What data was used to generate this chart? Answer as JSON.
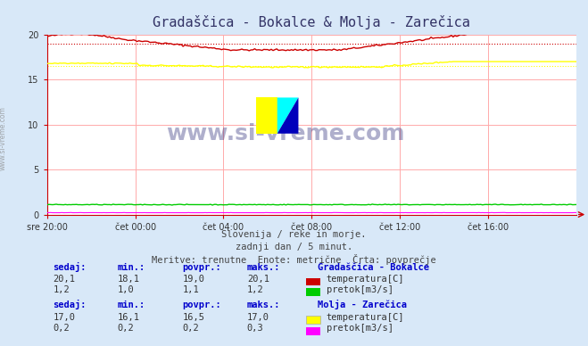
{
  "title": "Gradaščica - Bokalce & Molja - Zarečica",
  "background_color": "#d8e8f8",
  "plot_bg_color": "#ffffff",
  "x_labels": [
    "sre 20:00",
    "čet 00:00",
    "čet 04:00",
    "čet 08:00",
    "čet 12:00",
    "čet 16:00"
  ],
  "x_ticks": [
    0,
    48,
    96,
    144,
    192,
    240
  ],
  "x_max": 288,
  "y_min": 0,
  "y_max": 20,
  "y_ticks": [
    0,
    5,
    10,
    15,
    20
  ],
  "subtitle_lines": [
    "Slovenija / reke in morje.",
    "zadnji dan / 5 minut.",
    "Meritve: trenutne  Enote: metrične  Črta: povprečje"
  ],
  "watermark": "www.si-vreme.com",
  "station1_name": "Gradaščica - Bokalce",
  "station2_name": "Molja - Zarečica",
  "bokalce_temp_color": "#cc0000",
  "bokalce_temp_avg": 19.0,
  "bokalce_temp_min": 18.1,
  "bokalce_temp_max": 20.1,
  "bokalce_pretok_color": "#00cc00",
  "bokalce_pretok_avg": 1.1,
  "bokalce_pretok_min": 1.0,
  "bokalce_pretok_max": 1.2,
  "zarecica_temp_color": "#ffff00",
  "zarecica_temp_avg": 16.5,
  "zarecica_temp_min": 16.1,
  "zarecica_temp_max": 17.0,
  "zarecica_pretok_color": "#ff00ff",
  "zarecica_pretok_avg": 0.2,
  "zarecica_pretok_min": 0.2,
  "zarecica_pretok_max": 0.3,
  "label_color": "#0000cc",
  "axis_color": "#cc0000",
  "station1_sedaj": [
    "20,1",
    "18,1",
    "19,0",
    "20,1"
  ],
  "station1_pretok": [
    "1,2",
    "1,0",
    "1,1",
    "1,2"
  ],
  "station2_sedaj": [
    "17,0",
    "16,1",
    "16,5",
    "17,0"
  ],
  "station2_pretok": [
    "0,2",
    "0,2",
    "0,2",
    "0,3"
  ]
}
